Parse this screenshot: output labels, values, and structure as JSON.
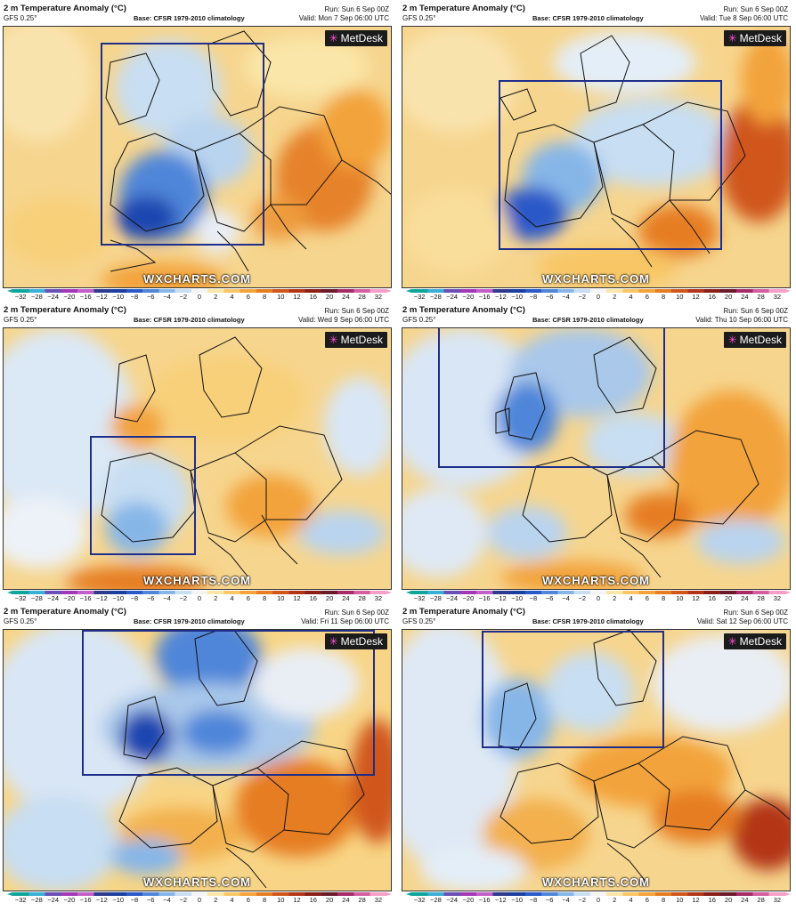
{
  "common": {
    "title": "2 m Temperature Anomaly (°C)",
    "model": "GFS 0.25°",
    "base": "Base: CFSR 1979-2010 climatology",
    "run": "Run: Sun 6 Sep 00Z",
    "brand": "MetDesk",
    "watermark": "WXCHARTS.COM",
    "colorbar_ticks": [
      "−32",
      "−28",
      "−24",
      "−20",
      "−16",
      "−12",
      "−10",
      "−8",
      "−6",
      "−4",
      "−2",
      "0",
      "2",
      "4",
      "6",
      "8",
      "10",
      "12",
      "16",
      "20",
      "24",
      "28",
      "32"
    ],
    "colorbar_colors": [
      "#0fa59a",
      "#3ab0d6",
      "#6a4fb8",
      "#a437b6",
      "#c35fc9",
      "#2e3b8c",
      "#1b3f9e",
      "#2a59c8",
      "#4f86d9",
      "#86b6e8",
      "#c8def2",
      "#f4f4f4",
      "#fae6a8",
      "#f8c665",
      "#f3a33a",
      "#e67d20",
      "#d0561a",
      "#b33518",
      "#8a1f17",
      "#6b1a2a",
      "#a62b68",
      "#d45ea0",
      "#f5a0c8"
    ]
  },
  "panels": [
    {
      "valid": "Valid: Mon 7 Sep 06:00 UTC"
    },
    {
      "valid": "Valid: Tue 8 Sep 06:00 UTC"
    },
    {
      "valid": "Valid: Wed 9 Sep 06:00 UTC"
    },
    {
      "valid": "Valid: Thu 10 Sep 06:00 UTC"
    },
    {
      "valid": "Valid: Fri 11 Sep 06:00 UTC"
    },
    {
      "valid": "Valid: Sat 12 Sep 06:00 UTC"
    }
  ]
}
